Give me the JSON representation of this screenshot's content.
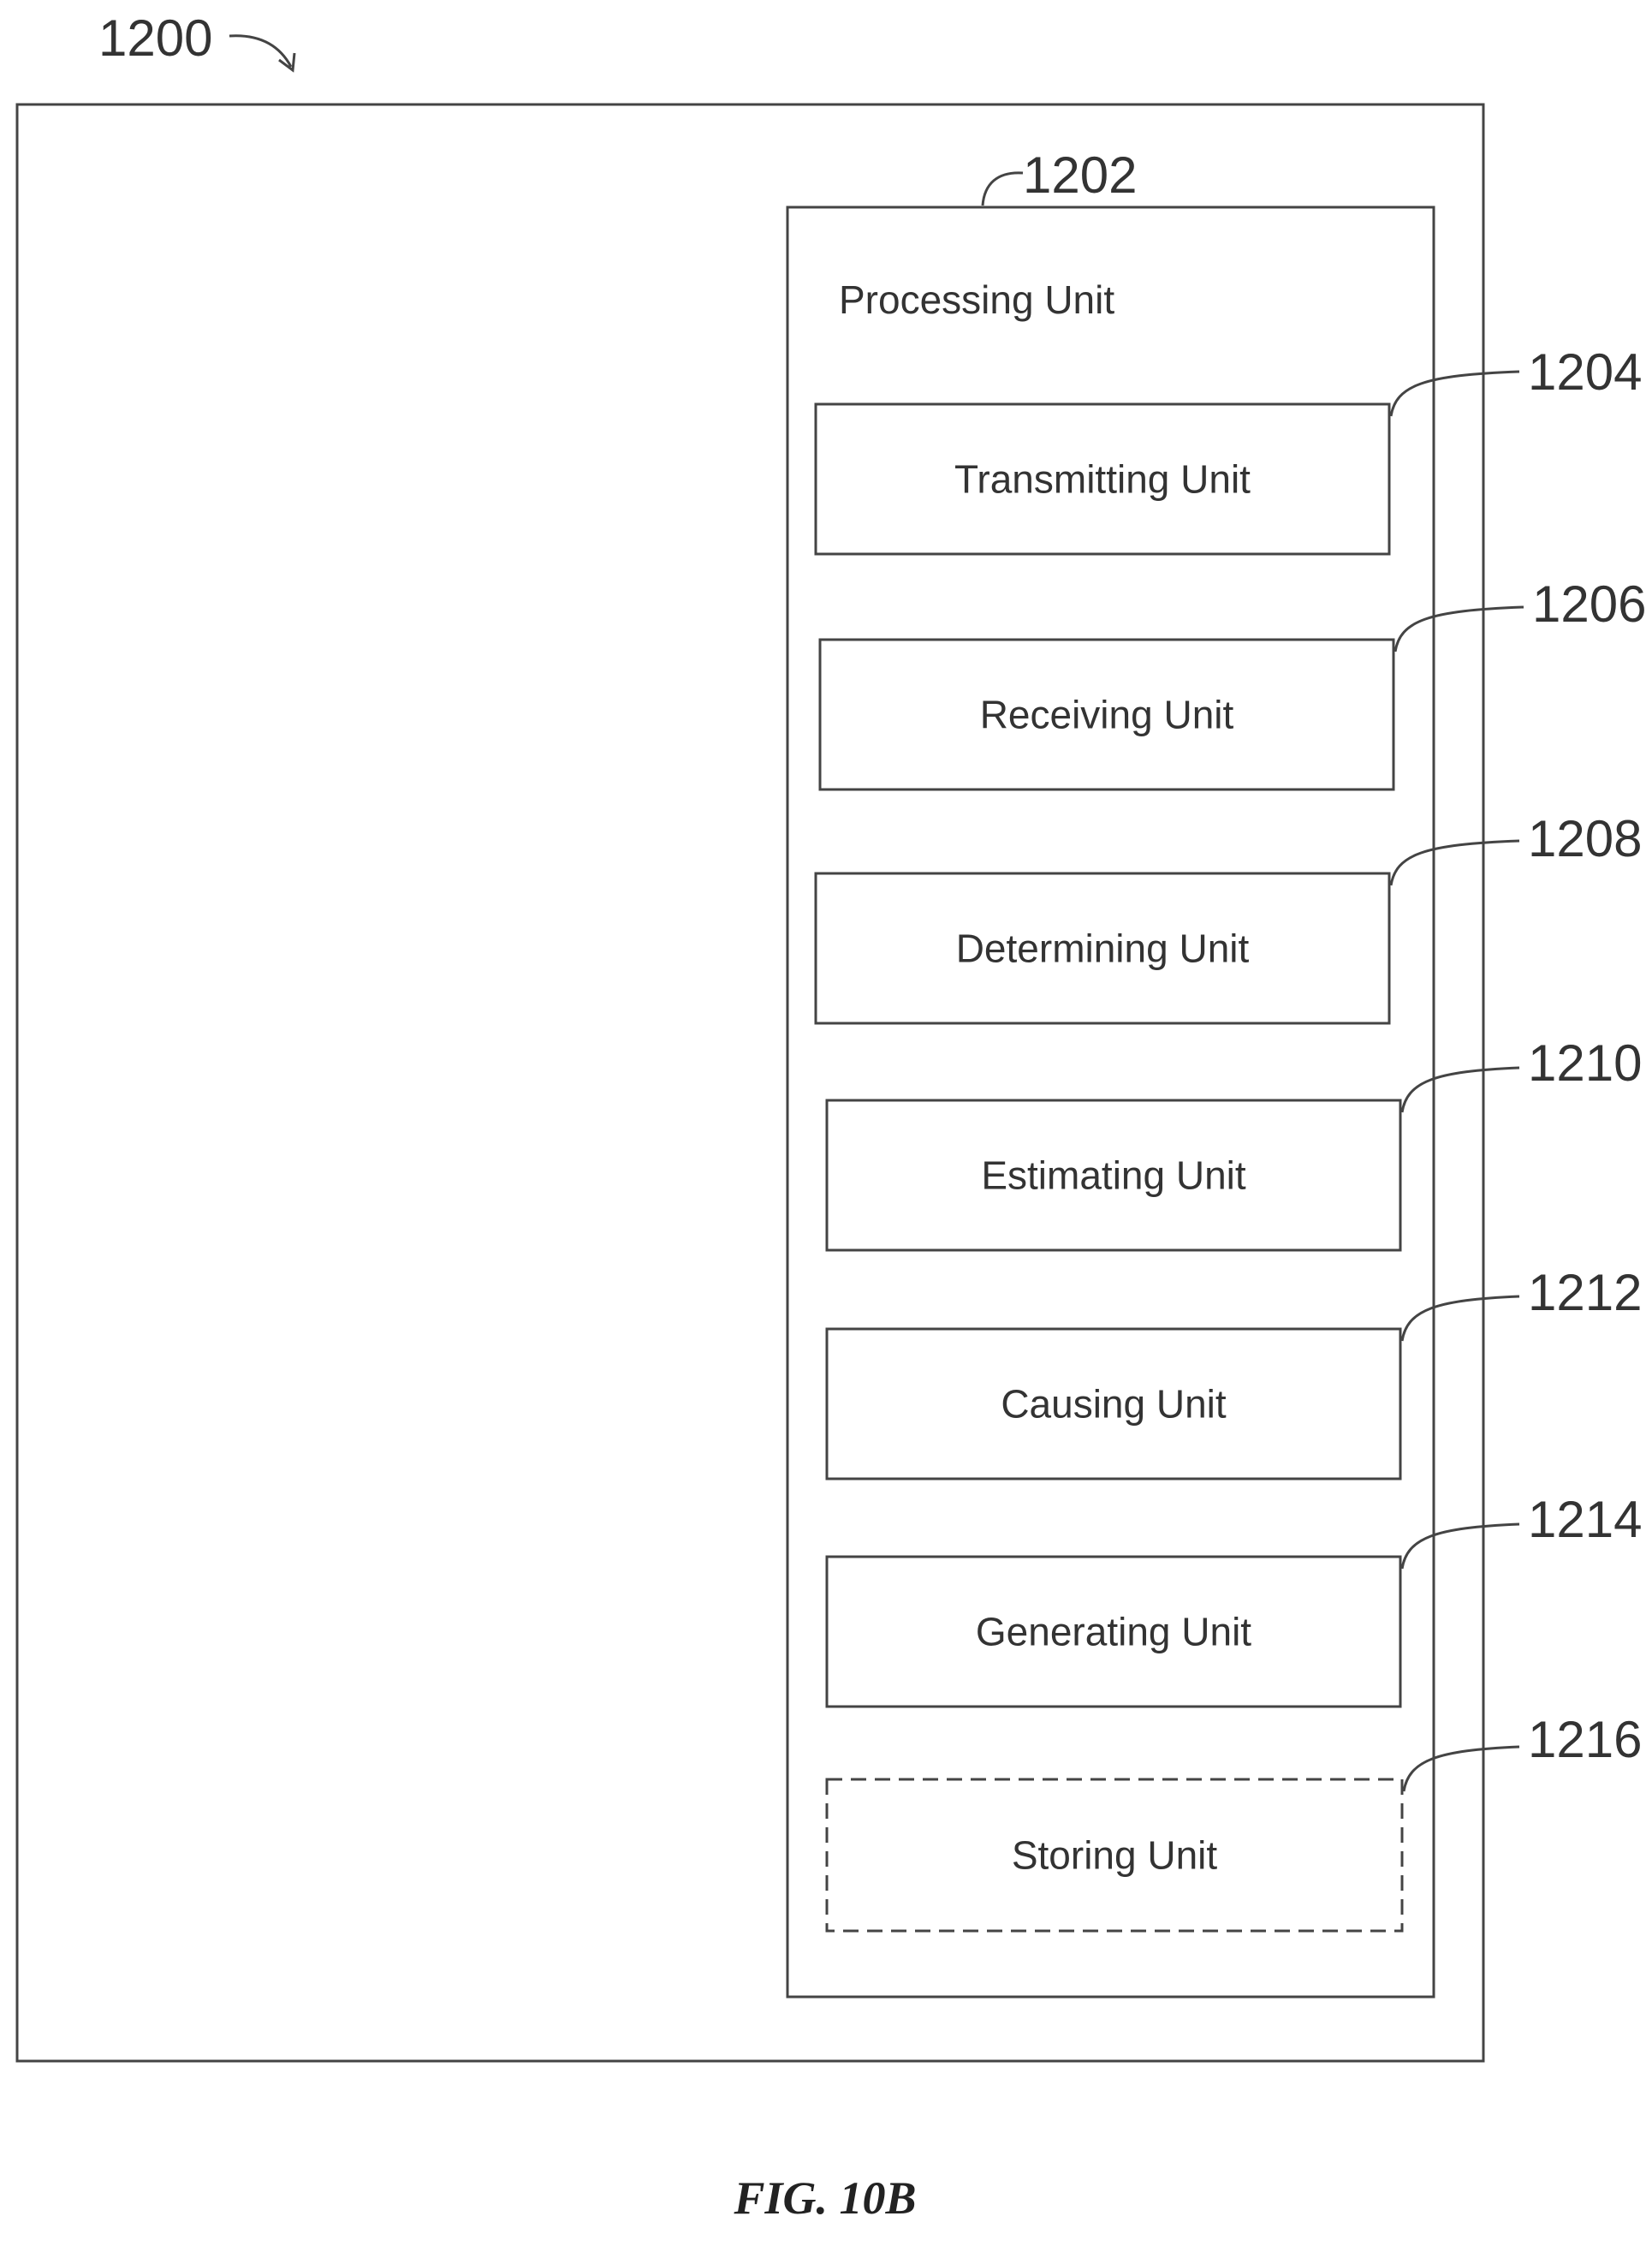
{
  "figure": {
    "system_ref": "1200",
    "caption": "FIG. 10B"
  },
  "processing_unit": {
    "ref": "1202",
    "label": "Processing Unit"
  },
  "units": [
    {
      "ref": "1204",
      "label": "Transmitting Unit",
      "style": "solid"
    },
    {
      "ref": "1206",
      "label": "Receiving Unit",
      "style": "solid"
    },
    {
      "ref": "1208",
      "label": "Determining Unit",
      "style": "solid"
    },
    {
      "ref": "1210",
      "label": "Estimating Unit",
      "style": "solid"
    },
    {
      "ref": "1212",
      "label": "Causing Unit",
      "style": "solid"
    },
    {
      "ref": "1214",
      "label": "Generating Unit",
      "style": "solid"
    },
    {
      "ref": "1216",
      "label": "Storing Unit",
      "style": "dashed"
    }
  ]
}
